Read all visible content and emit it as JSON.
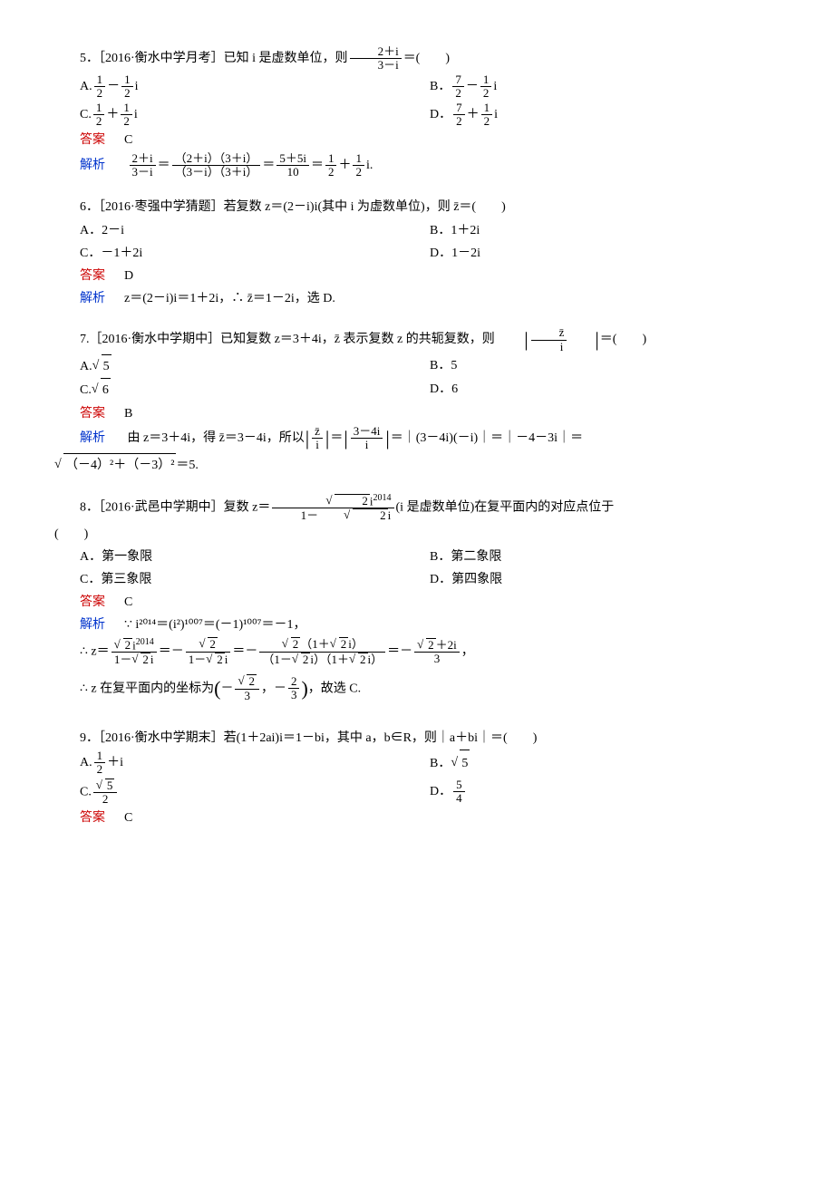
{
  "q5": {
    "source": "［2016·衡水中学月考］",
    "stem_pre": "5．",
    "stem_mid": "已知 i 是虚数单位，则",
    "frac_num": "2＋i",
    "frac_den": "3－i",
    "stem_post": "＝(　　)",
    "A_pre": "A.",
    "B_pre": "B．",
    "C_pre": "C.",
    "D_pre": "D．",
    "answer_label": "答案",
    "answer": "C",
    "analysis_label": "解析",
    "expl_eq": "＝",
    "expl_lhs_num": "2＋i",
    "expl_lhs_den": "3－i",
    "expl_mid1_num": "（2＋i）（3＋i）",
    "expl_mid1_den": "（3－i）（3＋i）",
    "expl_mid2_num": "5＋5i",
    "expl_mid2_den": "10",
    "expl_r1_num": "1",
    "expl_r1_den": "2",
    "expl_plus": "＋",
    "expl_r2_num": "1",
    "expl_r2_den": "2",
    "expl_tail": "i."
  },
  "q6": {
    "stem_pre": "6．",
    "source": "［2016·枣强中学猜题］",
    "stem": "若复数 z＝(2－i)i(其中 i 为虚数单位)，则 z̄＝(　　)",
    "A": "A．2－i",
    "B": "B．1＋2i",
    "C": "C．－1＋2i",
    "D": "D．1－2i",
    "answer_label": "答案",
    "answer": "D",
    "analysis_label": "解析",
    "analysis": "z＝(2－i)i＝1＋2i，∴ z̄＝1－2i，选 D."
  },
  "q7": {
    "stem_pre": "7.",
    "source": "［2016·衡水中学期中］",
    "stem": "已知复数 z＝3＋4i，z̄ 表示复数 z 的共轭复数，则 ",
    "bar_frac_num": "z̄",
    "bar_frac_den": "i",
    "stem_post": "＝(　　)",
    "A": "A.",
    "A_rad": "5",
    "B": "B．5",
    "C": "C.",
    "C_rad": "6",
    "D": "D．6",
    "answer_label": "答案",
    "answer": "B",
    "analysis_label": "解析",
    "expl_1": "由 z＝3＋4i，得 z̄＝3－4i，所以",
    "expl_bar1_num": "z̄",
    "expl_bar1_den": "i",
    "expl_eq": "＝",
    "expl_bar2_num": "3－4i",
    "expl_bar2_den": "i",
    "expl_2": "＝｜(3－4i)(－i)｜＝｜－4－3i｜＝",
    "expl_rad": "（－4）²＋（－3）²",
    "expl_3": "＝5."
  },
  "q8": {
    "stem_pre": "8．",
    "source": "［2016·武邑中学期中］",
    "stem_a": "复数 z＝",
    "frac_num_a": "2",
    "frac_num_b": "i",
    "frac_num_sup": "2014",
    "frac_den_a": "1－",
    "frac_den_b": "2",
    "frac_den_c": "i",
    "stem_b": "(i 是虚数单位)在复平面内的对应点位于",
    "stem_c": "(　　)",
    "A": "A．第一象限",
    "B": "B．第二象限",
    "C": "C．第三象限",
    "D": "D．第四象限",
    "answer_label": "答案",
    "answer": "C",
    "analysis_label": "解析",
    "expl_1": "∵ i²⁰¹⁴＝(i²)¹⁰⁰⁷＝(－1)¹⁰⁰⁷＝－1，",
    "expl_2a": "∴ z＝",
    "expl_eq": "＝",
    "expl_neg": "－",
    "expl_last_num_a": "2",
    "expl_last_num_b": "＋2i",
    "expl_last_den": "3",
    "expl_tail": "，",
    "expl_3a": "∴ z 在复平面内的坐标为",
    "coord_x_num_a": "2",
    "coord_x_den": "3",
    "coord_y_num": "2",
    "coord_y_den": "3",
    "expl_3b": "，故选 C."
  },
  "q9": {
    "stem_pre": "9．",
    "source": "［2016·衡水中学期末］",
    "stem": "若(1＋2ai)i＝1－bi，其中 a，b∈R，则｜a＋bi｜＝(　　)",
    "A_pre": "A.",
    "A_num": "1",
    "A_den": "2",
    "A_post": "＋i",
    "B_pre": "B．",
    "B_rad": "5",
    "C_pre": "C.",
    "C_num_rad": "5",
    "C_den": "2",
    "D_pre": "D．",
    "D_num": "5",
    "D_den": "4",
    "answer_label": "答案",
    "answer": "C"
  },
  "colors": {
    "answer": "#cc0000",
    "analysis": "#0033cc",
    "text": "#000000",
    "bg": "#ffffff"
  }
}
